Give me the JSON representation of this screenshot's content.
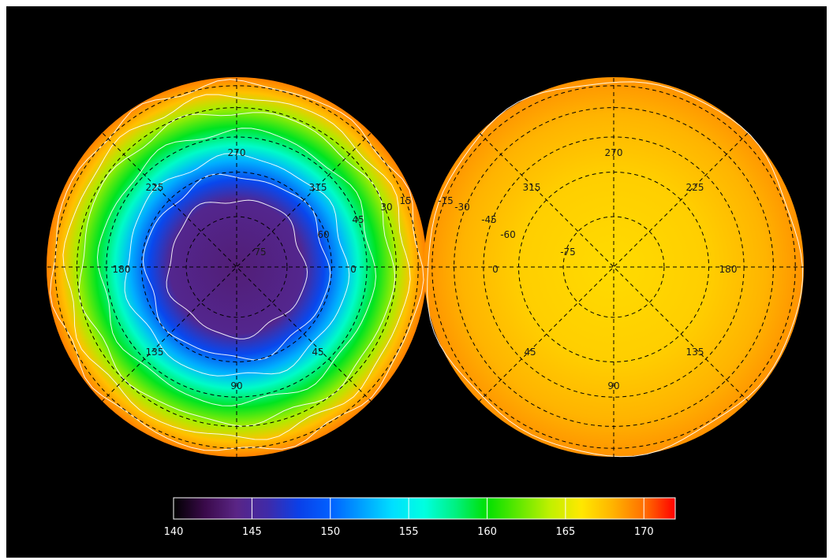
{
  "maps": [
    {
      "name": "left-hemisphere",
      "lon_labels": [
        {
          "text": "270",
          "angle": 270
        },
        {
          "text": "225",
          "angle": 225
        },
        {
          "text": "315",
          "angle": 315
        },
        {
          "text": "180",
          "angle": 180
        },
        {
          "text": "0",
          "angle": 0
        },
        {
          "text": "135",
          "angle": 135
        },
        {
          "text": "45",
          "angle": 45
        },
        {
          "text": "90",
          "angle": 90
        }
      ],
      "lat_labels": [
        "75",
        "60",
        "45",
        "30",
        "15"
      ],
      "field": [
        {
          "radius_frac": 0.0,
          "value": 143.5
        },
        {
          "radius_frac": 0.35,
          "value": 144.5
        },
        {
          "radius_frac": 0.46,
          "value": 148.5
        },
        {
          "radius_frac": 0.56,
          "value": 152.5
        },
        {
          "radius_frac": 0.64,
          "value": 156.5
        },
        {
          "radius_frac": 0.74,
          "value": 159.5
        },
        {
          "radius_frac": 0.84,
          "value": 163.5
        },
        {
          "radius_frac": 0.92,
          "value": 167.5
        },
        {
          "radius_frac": 1.0,
          "value": 169.5
        }
      ]
    },
    {
      "name": "right-hemisphere",
      "lon_labels": [
        {
          "text": "270",
          "angle": 270
        },
        {
          "text": "315",
          "angle": 225
        },
        {
          "text": "225",
          "angle": 315
        },
        {
          "text": "0",
          "angle": 180
        },
        {
          "text": "180",
          "angle": 0
        },
        {
          "text": "45",
          "angle": 135
        },
        {
          "text": "135",
          "angle": 45
        },
        {
          "text": "90",
          "angle": 90
        }
      ],
      "lat_labels": [
        "-75",
        "-60",
        "-45",
        "-30",
        "-15"
      ],
      "field": [
        {
          "radius_frac": 0.0,
          "value": 166.5
        },
        {
          "radius_frac": 0.5,
          "value": 167.0
        },
        {
          "radius_frac": 0.8,
          "value": 168.0
        },
        {
          "radius_frac": 1.0,
          "value": 169.0
        }
      ]
    }
  ],
  "colorbar": {
    "min": 140,
    "max": 172,
    "tick_values": [
      140,
      145,
      150,
      155,
      160,
      165,
      170
    ],
    "tick_labels": [
      "140",
      "145",
      "150",
      "155",
      "160",
      "165",
      "170"
    ],
    "colormap": [
      {
        "value": 140,
        "color": "#000000"
      },
      {
        "value": 142,
        "color": "#3a0a4a"
      },
      {
        "value": 144,
        "color": "#5a2585"
      },
      {
        "value": 146,
        "color": "#3f2aa8"
      },
      {
        "value": 148,
        "color": "#0a40e8"
      },
      {
        "value": 150,
        "color": "#0060ff"
      },
      {
        "value": 152,
        "color": "#00a0ff"
      },
      {
        "value": 154,
        "color": "#00e0ff"
      },
      {
        "value": 156,
        "color": "#00ffe0"
      },
      {
        "value": 158,
        "color": "#00f080"
      },
      {
        "value": 160,
        "color": "#00e000"
      },
      {
        "value": 162,
        "color": "#60e800"
      },
      {
        "value": 164,
        "color": "#c0f000"
      },
      {
        "value": 166,
        "color": "#ffe800"
      },
      {
        "value": 168,
        "color": "#ffb400"
      },
      {
        "value": 170,
        "color": "#ff7000"
      },
      {
        "value": 172,
        "color": "#ff0000"
      }
    ]
  }
}
